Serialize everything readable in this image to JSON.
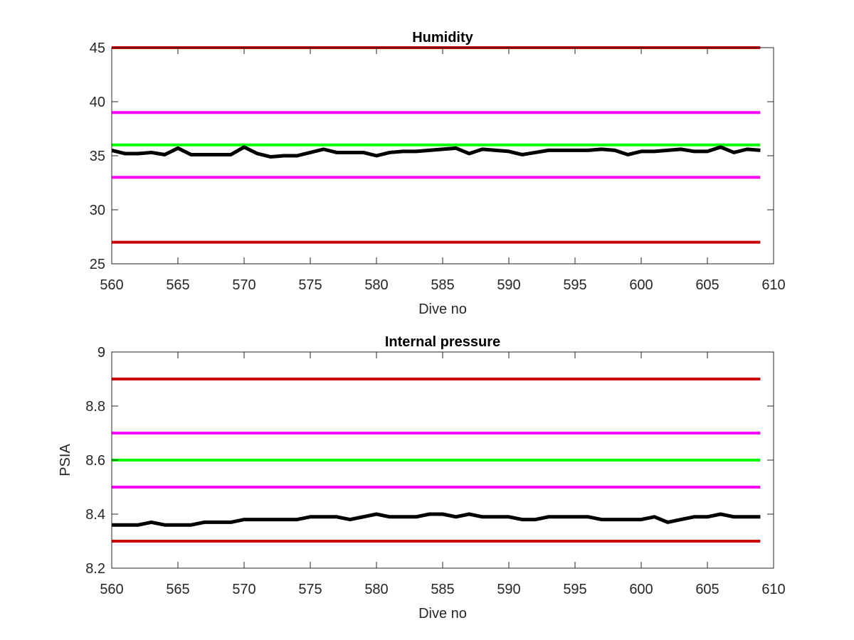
{
  "chart_data": [
    {
      "type": "line",
      "title": "Humidity",
      "xlabel": "Dive no",
      "ylabel": "",
      "xlim": [
        560,
        610
      ],
      "ylim": [
        25,
        45
      ],
      "xticks": [
        560,
        565,
        570,
        575,
        580,
        585,
        590,
        595,
        600,
        605,
        610
      ],
      "yticks": [
        25,
        30,
        35,
        40,
        45
      ],
      "grid": false,
      "x": [
        560,
        561,
        562,
        563,
        564,
        565,
        566,
        567,
        568,
        569,
        570,
        571,
        572,
        573,
        574,
        575,
        576,
        577,
        578,
        579,
        580,
        581,
        582,
        583,
        584,
        585,
        586,
        587,
        588,
        589,
        590,
        591,
        592,
        593,
        594,
        595,
        596,
        597,
        598,
        599,
        600,
        601,
        602,
        603,
        604,
        605,
        606,
        607,
        608,
        609
      ],
      "series": [
        {
          "color": "#000000",
          "values": [
            35.5,
            35.2,
            35.2,
            35.3,
            35.1,
            35.7,
            35.1,
            35.1,
            35.1,
            35.1,
            35.8,
            35.2,
            34.9,
            35.0,
            35.0,
            35.3,
            35.6,
            35.3,
            35.3,
            35.3,
            35.0,
            35.3,
            35.4,
            35.4,
            35.5,
            35.6,
            35.7,
            35.2,
            35.6,
            35.5,
            35.4,
            35.1,
            35.3,
            35.5,
            35.5,
            35.5,
            35.5,
            35.6,
            35.5,
            35.1,
            35.4,
            35.4,
            35.5,
            35.6,
            35.4,
            35.4,
            35.8,
            35.3,
            35.6,
            35.5
          ]
        }
      ],
      "reference_lines": [
        {
          "y": 45,
          "color": "#cc0000"
        },
        {
          "y": 39,
          "color": "#ff00ff"
        },
        {
          "y": 36,
          "color": "#00ff00"
        },
        {
          "y": 33,
          "color": "#ff00ff"
        },
        {
          "y": 27,
          "color": "#cc0000"
        }
      ]
    },
    {
      "type": "line",
      "title": "Internal pressure",
      "xlabel": "Dive no",
      "ylabel": "PSIA",
      "xlim": [
        560,
        610
      ],
      "ylim": [
        8.2,
        9
      ],
      "xticks": [
        560,
        565,
        570,
        575,
        580,
        585,
        590,
        595,
        600,
        605,
        610
      ],
      "yticks": [
        8.2,
        8.4,
        8.6,
        8.8,
        9
      ],
      "grid": false,
      "x": [
        560,
        561,
        562,
        563,
        564,
        565,
        566,
        567,
        568,
        569,
        570,
        571,
        572,
        573,
        574,
        575,
        576,
        577,
        578,
        579,
        580,
        581,
        582,
        583,
        584,
        585,
        586,
        587,
        588,
        589,
        590,
        591,
        592,
        593,
        594,
        595,
        596,
        597,
        598,
        599,
        600,
        601,
        602,
        603,
        604,
        605,
        606,
        607,
        608,
        609
      ],
      "series": [
        {
          "color": "#000000",
          "values": [
            8.36,
            8.36,
            8.36,
            8.37,
            8.36,
            8.36,
            8.36,
            8.37,
            8.37,
            8.37,
            8.38,
            8.38,
            8.38,
            8.38,
            8.38,
            8.39,
            8.39,
            8.39,
            8.38,
            8.39,
            8.4,
            8.39,
            8.39,
            8.39,
            8.4,
            8.4,
            8.39,
            8.4,
            8.39,
            8.39,
            8.39,
            8.38,
            8.38,
            8.39,
            8.39,
            8.39,
            8.39,
            8.38,
            8.38,
            8.38,
            8.38,
            8.39,
            8.37,
            8.38,
            8.39,
            8.39,
            8.4,
            8.39,
            8.39,
            8.39
          ]
        }
      ],
      "reference_lines": [
        {
          "y": 8.9,
          "color": "#cc0000"
        },
        {
          "y": 8.7,
          "color": "#ff00ff"
        },
        {
          "y": 8.6,
          "color": "#00ff00"
        },
        {
          "y": 8.5,
          "color": "#ff00ff"
        },
        {
          "y": 8.3,
          "color": "#cc0000"
        }
      ]
    }
  ]
}
